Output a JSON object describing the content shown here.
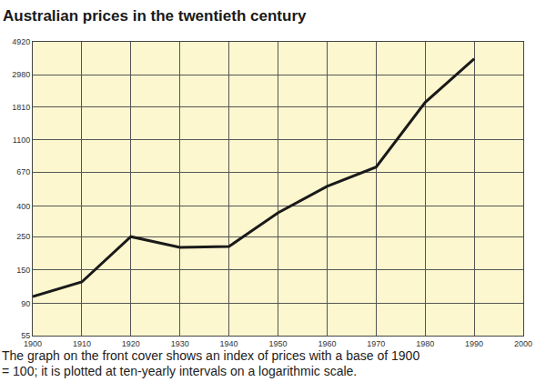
{
  "chart_data": {
    "type": "line",
    "title": "Australian prices in the twentieth century",
    "caption": "The graph on the front cover shows an index of prices with a base of 1900 = 100; it is plotted at ten-yearly intervals on a logarithmic scale.",
    "x": [
      1900,
      1910,
      1920,
      1930,
      1940,
      1950,
      1960,
      1970,
      1980,
      1990
    ],
    "values": [
      100,
      125,
      250,
      212,
      215,
      360,
      540,
      725,
      1950,
      3800
    ],
    "color": "#1a1a1a",
    "log": "y",
    "grid": true,
    "xlim": [
      1900,
      2000
    ],
    "xticks": [
      1900,
      1910,
      1920,
      1930,
      1940,
      1950,
      1960,
      1970,
      1980,
      1990,
      2000
    ],
    "ylim": [
      55,
      4920
    ],
    "yticks": [
      55,
      90,
      150,
      250,
      400,
      670,
      1100,
      1810,
      2980,
      4920
    ]
  }
}
